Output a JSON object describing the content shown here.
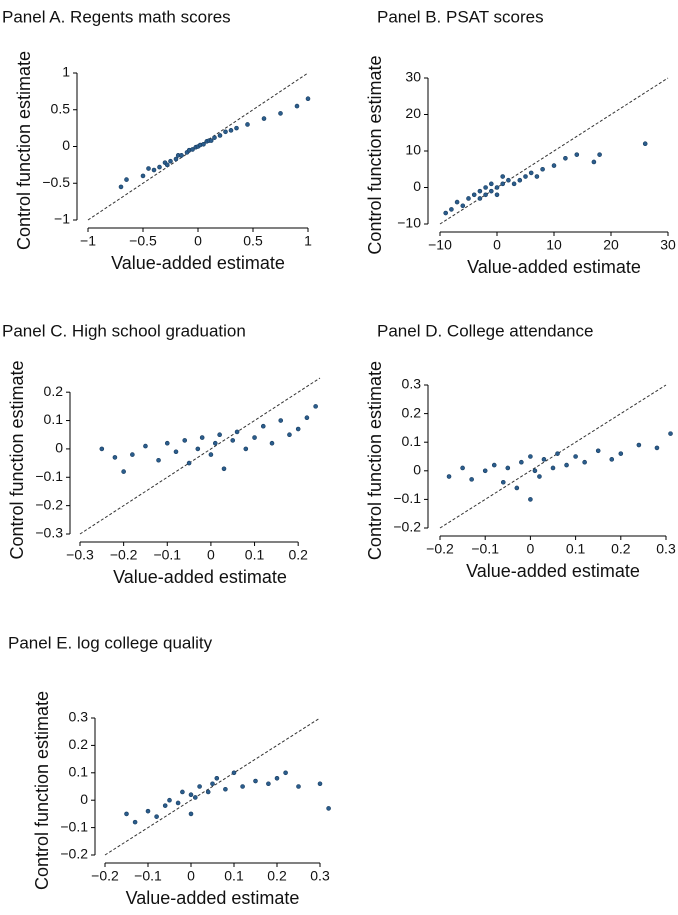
{
  "chart_data": [
    {
      "type": "scatter",
      "title": "Panel A. Regents math scores",
      "x_label": "Value-added estimate",
      "y_label": "Control function estimate",
      "x": [
        -0.7,
        -0.65,
        -0.5,
        -0.45,
        -0.4,
        -0.35,
        -0.3,
        -0.28,
        -0.25,
        -0.2,
        -0.18,
        -0.15,
        -0.1,
        -0.08,
        -0.05,
        -0.02,
        0,
        0.02,
        0.05,
        0.08,
        0.1,
        0.12,
        0.15,
        0.2,
        0.25,
        0.3,
        0.35,
        0.45,
        0.6,
        0.75,
        0.9,
        1.0
      ],
      "y": [
        -0.55,
        -0.45,
        -0.4,
        -0.3,
        -0.32,
        -0.28,
        -0.22,
        -0.25,
        -0.2,
        -0.17,
        -0.12,
        -0.12,
        -0.08,
        -0.05,
        -0.04,
        -0.01,
        0,
        0.02,
        0.03,
        0.07,
        0.08,
        0.08,
        0.12,
        0.15,
        0.2,
        0.22,
        0.25,
        0.3,
        0.38,
        0.45,
        0.55,
        0.65
      ],
      "xlim": [
        -1,
        1
      ],
      "ylim": [
        -1,
        1
      ],
      "xticks": [
        {
          "value": -1,
          "label": "−1"
        },
        {
          "value": -0.5,
          "label": "−0.5"
        },
        0,
        0.5,
        1
      ],
      "yticks": [
        {
          "value": -1,
          "label": "−1"
        },
        {
          "value": -0.5,
          "label": "−0.5"
        },
        0,
        0.5,
        1
      ],
      "color": "#2b5d8c",
      "diagonal": true
    },
    {
      "type": "scatter",
      "title": "Panel B. PSAT scores",
      "x_label": "Value-added estimate",
      "y_label": "Control function estimate",
      "x": [
        -9,
        -8,
        -7,
        -6,
        -5,
        -4,
        -3,
        -3,
        -2,
        -2,
        -1,
        -1,
        0,
        0,
        1,
        1,
        2,
        3,
        4,
        5,
        6,
        7,
        8,
        10,
        12,
        14,
        17,
        18,
        26
      ],
      "y": [
        -7,
        -6,
        -4,
        -5,
        -3,
        -2,
        -3,
        -1,
        -2,
        0,
        -1,
        1,
        0,
        -2,
        1,
        3,
        2,
        1,
        2,
        3,
        4,
        3,
        5,
        6,
        8,
        9,
        7,
        9,
        12
      ],
      "xlim": [
        -10,
        30
      ],
      "ylim": [
        -10,
        30
      ],
      "xticks": [
        {
          "value": -10,
          "label": "−10"
        },
        0,
        10,
        20,
        30
      ],
      "yticks": [
        {
          "value": -10,
          "label": "−10"
        },
        0,
        10,
        20,
        30
      ],
      "color": "#2b5d8c",
      "diagonal": true
    },
    {
      "type": "scatter",
      "title": "Panel C. High school graduation",
      "x_label": "Value-added estimate",
      "y_label": "Control function estimate",
      "x": [
        -0.25,
        -0.22,
        -0.2,
        -0.18,
        -0.15,
        -0.12,
        -0.1,
        -0.08,
        -0.06,
        -0.05,
        -0.03,
        -0.02,
        0,
        0.01,
        0.02,
        0.03,
        0.05,
        0.06,
        0.08,
        0.1,
        0.12,
        0.14,
        0.16,
        0.18,
        0.2,
        0.22,
        0.24
      ],
      "y": [
        0,
        -0.03,
        -0.08,
        -0.02,
        0.01,
        -0.04,
        0.02,
        -0.01,
        0.03,
        -0.05,
        0,
        0.04,
        -0.02,
        0.02,
        0.05,
        -0.07,
        0.03,
        0.06,
        0,
        0.04,
        0.08,
        0.02,
        0.1,
        0.05,
        0.07,
        0.11,
        0.15
      ],
      "xlim": [
        -0.3,
        0.25
      ],
      "ylim": [
        -0.3,
        0.25
      ],
      "xticks": [
        {
          "value": -0.3,
          "label": "−0.3"
        },
        {
          "value": -0.2,
          "label": "−0.2"
        },
        {
          "value": -0.1,
          "label": "−0.1"
        },
        0,
        0.1,
        0.2
      ],
      "yticks": [
        {
          "value": -0.3,
          "label": "−0.3"
        },
        {
          "value": -0.2,
          "label": "−0.2"
        },
        {
          "value": -0.1,
          "label": "−0.1"
        },
        0,
        0.1,
        0.2
      ],
      "color": "#2b5d8c",
      "diagonal": true
    },
    {
      "type": "scatter",
      "title": "Panel D. College attendance",
      "x_label": "Value-added estimate",
      "y_label": "Control function estimate",
      "x": [
        -0.18,
        -0.15,
        -0.13,
        -0.1,
        -0.08,
        -0.06,
        -0.05,
        -0.03,
        -0.02,
        0,
        0,
        0.01,
        0.02,
        0.03,
        0.05,
        0.06,
        0.08,
        0.1,
        0.12,
        0.15,
        0.18,
        0.2,
        0.24,
        0.28,
        0.31
      ],
      "y": [
        -0.02,
        0.01,
        -0.03,
        0,
        0.02,
        -0.04,
        0.01,
        -0.06,
        0.03,
        -0.1,
        0.05,
        0,
        -0.02,
        0.04,
        0.01,
        0.06,
        0.02,
        0.05,
        0.03,
        0.07,
        0.04,
        0.06,
        0.09,
        0.08,
        0.13
      ],
      "xlim": [
        -0.2,
        0.3
      ],
      "ylim": [
        -0.2,
        0.3
      ],
      "xticks": [
        {
          "value": -0.2,
          "label": "−0.2"
        },
        {
          "value": -0.1,
          "label": "−0.1"
        },
        0,
        0.1,
        0.2,
        0.3
      ],
      "yticks": [
        {
          "value": -0.2,
          "label": "−0.2"
        },
        {
          "value": -0.1,
          "label": "−0.1"
        },
        0,
        0.1,
        0.2,
        0.3
      ],
      "color": "#2b5d8c",
      "diagonal": true
    },
    {
      "type": "scatter",
      "title": "Panel E. log college quality",
      "x_label": "Value-added estimate",
      "y_label": "Control function estimate",
      "x": [
        -0.15,
        -0.13,
        -0.1,
        -0.08,
        -0.06,
        -0.05,
        -0.03,
        -0.02,
        0,
        0,
        0.01,
        0.02,
        0.04,
        0.05,
        0.06,
        0.08,
        0.1,
        0.12,
        0.15,
        0.18,
        0.2,
        0.22,
        0.25,
        0.3,
        0.32
      ],
      "y": [
        -0.05,
        -0.08,
        -0.04,
        -0.06,
        -0.02,
        0,
        -0.01,
        0.03,
        -0.05,
        0.02,
        0.01,
        0.05,
        0.03,
        0.06,
        0.08,
        0.04,
        0.1,
        0.05,
        0.07,
        0.06,
        0.08,
        0.1,
        0.05,
        0.06,
        -0.03
      ],
      "xlim": [
        -0.2,
        0.3
      ],
      "ylim": [
        -0.2,
        0.3
      ],
      "xticks": [
        {
          "value": -0.2,
          "label": "−0.2"
        },
        {
          "value": -0.1,
          "label": "−0.1"
        },
        0,
        0.1,
        0.2,
        0.3
      ],
      "yticks": [
        {
          "value": -0.2,
          "label": "−0.2"
        },
        {
          "value": -0.1,
          "label": "−0.1"
        },
        0,
        0.1,
        0.2,
        0.3
      ],
      "color": "#2b5d8c",
      "diagonal": true
    }
  ]
}
